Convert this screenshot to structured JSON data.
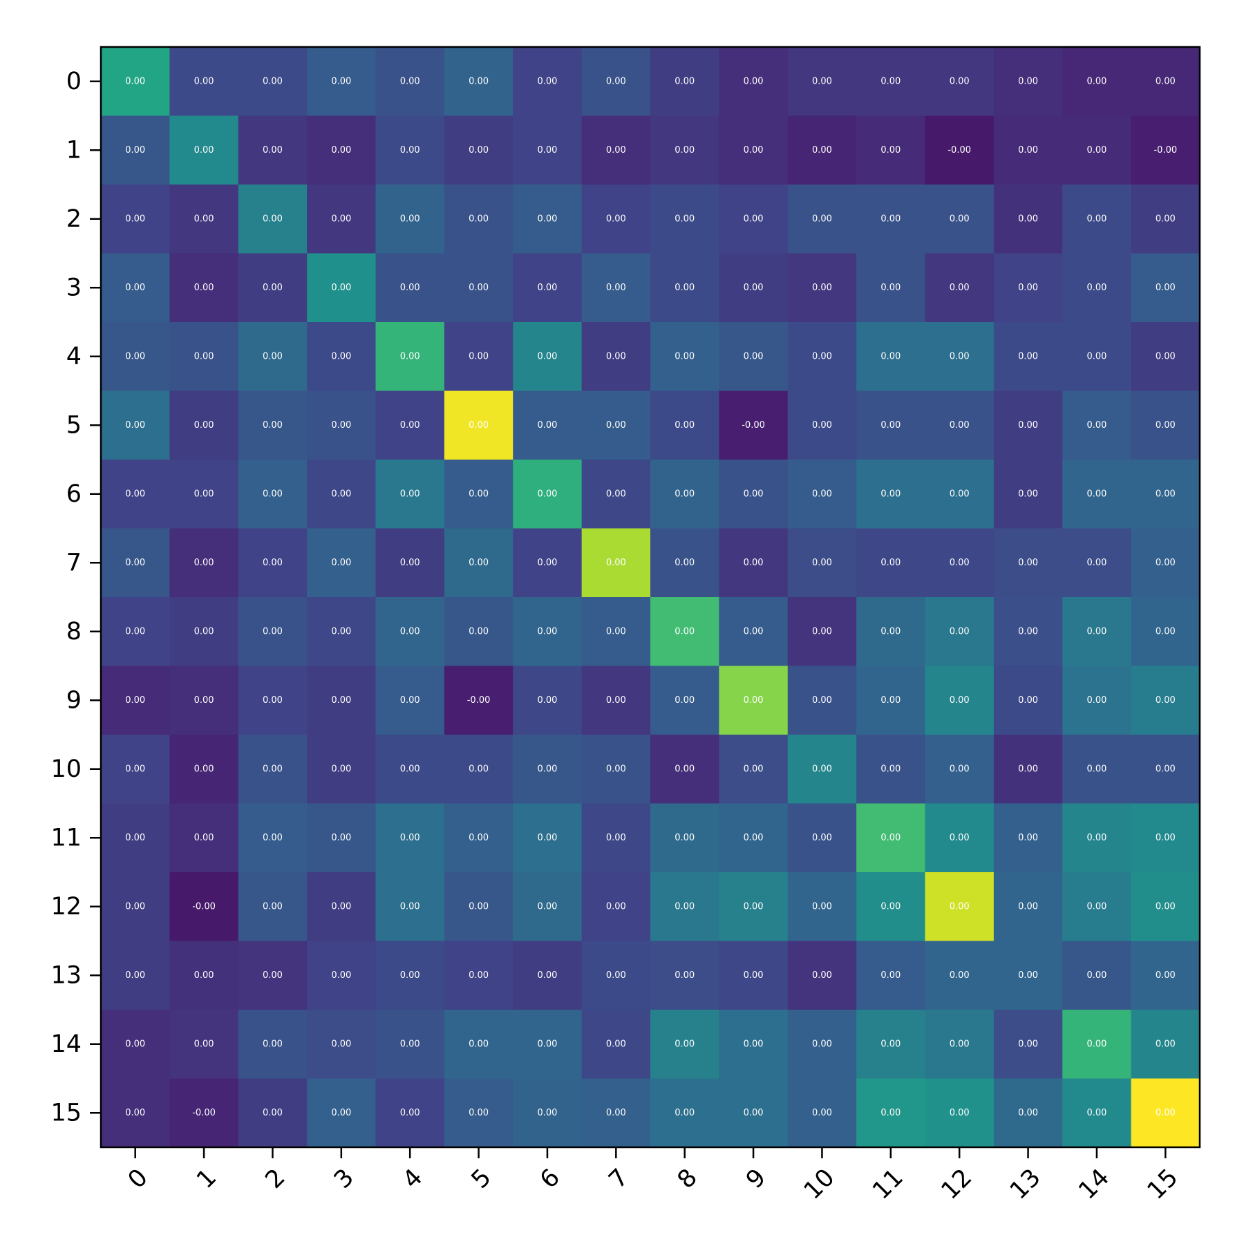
{
  "chart_data": {
    "type": "heatmap",
    "colormap": "viridis",
    "grid": false,
    "colorbar": false,
    "x_tick_labels": [
      "0",
      "1",
      "2",
      "3",
      "4",
      "5",
      "6",
      "7",
      "8",
      "9",
      "10",
      "11",
      "12",
      "13",
      "14",
      "15"
    ],
    "y_tick_labels": [
      "0",
      "1",
      "2",
      "3",
      "4",
      "5",
      "6",
      "7",
      "8",
      "9",
      "10",
      "11",
      "12",
      "13",
      "14",
      "15"
    ],
    "x_tick_rotation_deg": 45,
    "color_range": [
      -0.1,
      1.0
    ],
    "colors": [
      [
        0.55,
        0.15,
        0.15,
        0.22,
        0.18,
        0.25,
        0.12,
        0.18,
        0.1,
        0.05,
        0.08,
        0.08,
        0.08,
        0.05,
        0.03,
        0.03
      ],
      [
        0.2,
        0.42,
        0.08,
        0.05,
        0.15,
        0.1,
        0.12,
        0.05,
        0.08,
        0.05,
        0.02,
        0.04,
        -0.02,
        0.04,
        0.04,
        0.0
      ],
      [
        0.12,
        0.08,
        0.38,
        0.08,
        0.25,
        0.18,
        0.22,
        0.12,
        0.15,
        0.12,
        0.18,
        0.18,
        0.18,
        0.06,
        0.15,
        0.1
      ],
      [
        0.22,
        0.05,
        0.1,
        0.45,
        0.18,
        0.18,
        0.12,
        0.22,
        0.15,
        0.1,
        0.08,
        0.18,
        0.08,
        0.12,
        0.15,
        0.22
      ],
      [
        0.2,
        0.18,
        0.28,
        0.15,
        0.62,
        0.12,
        0.4,
        0.1,
        0.24,
        0.2,
        0.15,
        0.3,
        0.3,
        0.15,
        0.15,
        0.1
      ],
      [
        0.3,
        0.1,
        0.2,
        0.18,
        0.12,
        0.98,
        0.22,
        0.22,
        0.15,
        0.0,
        0.15,
        0.18,
        0.18,
        0.1,
        0.22,
        0.18
      ],
      [
        0.12,
        0.12,
        0.24,
        0.14,
        0.34,
        0.22,
        0.6,
        0.14,
        0.25,
        0.18,
        0.22,
        0.3,
        0.3,
        0.1,
        0.26,
        0.26
      ],
      [
        0.2,
        0.05,
        0.12,
        0.24,
        0.1,
        0.28,
        0.12,
        0.86,
        0.18,
        0.08,
        0.16,
        0.14,
        0.14,
        0.16,
        0.16,
        0.24
      ],
      [
        0.12,
        0.1,
        0.18,
        0.14,
        0.26,
        0.2,
        0.26,
        0.22,
        0.66,
        0.22,
        0.07,
        0.28,
        0.34,
        0.17,
        0.34,
        0.26
      ],
      [
        0.04,
        0.05,
        0.12,
        0.1,
        0.22,
        0.0,
        0.14,
        0.08,
        0.22,
        0.8,
        0.18,
        0.26,
        0.4,
        0.15,
        0.32,
        0.36
      ],
      [
        0.12,
        0.02,
        0.18,
        0.1,
        0.15,
        0.15,
        0.2,
        0.18,
        0.05,
        0.16,
        0.4,
        0.18,
        0.24,
        0.06,
        0.18,
        0.18
      ],
      [
        0.1,
        0.05,
        0.22,
        0.2,
        0.3,
        0.24,
        0.3,
        0.14,
        0.28,
        0.26,
        0.18,
        0.66,
        0.42,
        0.24,
        0.4,
        0.42
      ],
      [
        0.1,
        -0.02,
        0.2,
        0.1,
        0.3,
        0.2,
        0.28,
        0.12,
        0.34,
        0.38,
        0.26,
        0.44,
        0.92,
        0.26,
        0.36,
        0.44
      ],
      [
        0.1,
        0.06,
        0.07,
        0.12,
        0.15,
        0.12,
        0.1,
        0.15,
        0.16,
        0.14,
        0.07,
        0.22,
        0.26,
        0.26,
        0.2,
        0.26
      ],
      [
        0.05,
        0.07,
        0.18,
        0.16,
        0.18,
        0.26,
        0.26,
        0.14,
        0.38,
        0.3,
        0.24,
        0.38,
        0.34,
        0.16,
        0.62,
        0.4
      ],
      [
        0.05,
        0.02,
        0.1,
        0.24,
        0.12,
        0.22,
        0.25,
        0.24,
        0.3,
        0.3,
        0.24,
        0.48,
        0.46,
        0.28,
        0.42,
        1.0
      ]
    ],
    "cell_labels": [
      [
        "0.00",
        "0.00",
        "0.00",
        "0.00",
        "0.00",
        "0.00",
        "0.00",
        "0.00",
        "0.00",
        "0.00",
        "0.00",
        "0.00",
        "0.00",
        "0.00",
        "0.00",
        "0.00"
      ],
      [
        "0.00",
        "0.00",
        "0.00",
        "0.00",
        "0.00",
        "0.00",
        "0.00",
        "0.00",
        "0.00",
        "0.00",
        "0.00",
        "0.00",
        "-0.00",
        "0.00",
        "0.00",
        "-0.00"
      ],
      [
        "0.00",
        "0.00",
        "0.00",
        "0.00",
        "0.00",
        "0.00",
        "0.00",
        "0.00",
        "0.00",
        "0.00",
        "0.00",
        "0.00",
        "0.00",
        "0.00",
        "0.00",
        "0.00"
      ],
      [
        "0.00",
        "0.00",
        "0.00",
        "0.00",
        "0.00",
        "0.00",
        "0.00",
        "0.00",
        "0.00",
        "0.00",
        "0.00",
        "0.00",
        "0.00",
        "0.00",
        "0.00",
        "0.00"
      ],
      [
        "0.00",
        "0.00",
        "0.00",
        "0.00",
        "0.00",
        "0.00",
        "0.00",
        "0.00",
        "0.00",
        "0.00",
        "0.00",
        "0.00",
        "0.00",
        "0.00",
        "0.00",
        "0.00"
      ],
      [
        "0.00",
        "0.00",
        "0.00",
        "0.00",
        "0.00",
        "0.00",
        "0.00",
        "0.00",
        "0.00",
        "-0.00",
        "0.00",
        "0.00",
        "0.00",
        "0.00",
        "0.00",
        "0.00"
      ],
      [
        "0.00",
        "0.00",
        "0.00",
        "0.00",
        "0.00",
        "0.00",
        "0.00",
        "0.00",
        "0.00",
        "0.00",
        "0.00",
        "0.00",
        "0.00",
        "0.00",
        "0.00",
        "0.00"
      ],
      [
        "0.00",
        "0.00",
        "0.00",
        "0.00",
        "0.00",
        "0.00",
        "0.00",
        "0.00",
        "0.00",
        "0.00",
        "0.00",
        "0.00",
        "0.00",
        "0.00",
        "0.00",
        "0.00"
      ],
      [
        "0.00",
        "0.00",
        "0.00",
        "0.00",
        "0.00",
        "0.00",
        "0.00",
        "0.00",
        "0.00",
        "0.00",
        "0.00",
        "0.00",
        "0.00",
        "0.00",
        "0.00",
        "0.00"
      ],
      [
        "0.00",
        "0.00",
        "0.00",
        "0.00",
        "0.00",
        "-0.00",
        "0.00",
        "0.00",
        "0.00",
        "0.00",
        "0.00",
        "0.00",
        "0.00",
        "0.00",
        "0.00",
        "0.00"
      ],
      [
        "0.00",
        "0.00",
        "0.00",
        "0.00",
        "0.00",
        "0.00",
        "0.00",
        "0.00",
        "0.00",
        "0.00",
        "0.00",
        "0.00",
        "0.00",
        "0.00",
        "0.00",
        "0.00"
      ],
      [
        "0.00",
        "0.00",
        "0.00",
        "0.00",
        "0.00",
        "0.00",
        "0.00",
        "0.00",
        "0.00",
        "0.00",
        "0.00",
        "0.00",
        "0.00",
        "0.00",
        "0.00",
        "0.00"
      ],
      [
        "0.00",
        "-0.00",
        "0.00",
        "0.00",
        "0.00",
        "0.00",
        "0.00",
        "0.00",
        "0.00",
        "0.00",
        "0.00",
        "0.00",
        "0.00",
        "0.00",
        "0.00",
        "0.00"
      ],
      [
        "0.00",
        "0.00",
        "0.00",
        "0.00",
        "0.00",
        "0.00",
        "0.00",
        "0.00",
        "0.00",
        "0.00",
        "0.00",
        "0.00",
        "0.00",
        "0.00",
        "0.00",
        "0.00"
      ],
      [
        "0.00",
        "0.00",
        "0.00",
        "0.00",
        "0.00",
        "0.00",
        "0.00",
        "0.00",
        "0.00",
        "0.00",
        "0.00",
        "0.00",
        "0.00",
        "0.00",
        "0.00",
        "0.00"
      ],
      [
        "0.00",
        "-0.00",
        "0.00",
        "0.00",
        "0.00",
        "0.00",
        "0.00",
        "0.00",
        "0.00",
        "0.00",
        "0.00",
        "0.00",
        "0.00",
        "0.00",
        "0.00",
        "0.00"
      ]
    ]
  }
}
